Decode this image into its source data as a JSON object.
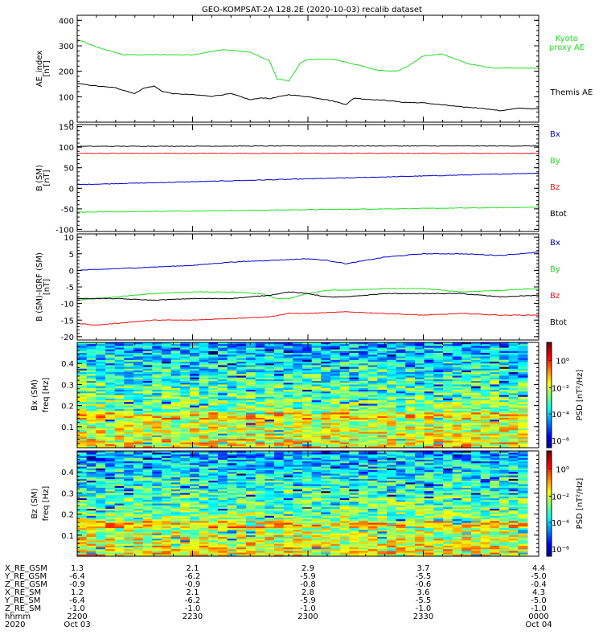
{
  "title": "GEO-KOMPSAT-2A 128.2E (2020-10-03) recalib dataset",
  "colors": {
    "green": "#22dd22",
    "black": "#000000",
    "blue": "#0000cc",
    "red": "#ee1111"
  },
  "chart_data": [
    {
      "type": "line",
      "panel": "ae_index",
      "ylabel": [
        "AE_index",
        "[nT]"
      ],
      "ylim": [
        0,
        420
      ],
      "yticks": [
        0,
        100,
        200,
        300,
        400
      ],
      "x_range": [
        0,
        120
      ],
      "series": [
        {
          "name": "Kyoto proxy AE",
          "label_lines": [
            "Kyoto",
            "proxy AE"
          ],
          "color": "green",
          "x": [
            0,
            5,
            12,
            20,
            30,
            38,
            45,
            50,
            52,
            55,
            58,
            60,
            62,
            67,
            72,
            78,
            83,
            86,
            90,
            95,
            98,
            102,
            108,
            115,
            120
          ],
          "y": [
            325,
            295,
            265,
            265,
            265,
            285,
            275,
            240,
            170,
            162,
            232,
            245,
            247,
            246,
            228,
            205,
            200,
            220,
            260,
            268,
            250,
            228,
            213,
            212,
            212
          ]
        },
        {
          "name": "Themis AE",
          "label_lines": [
            "Themis AE"
          ],
          "color": "black",
          "x": [
            0,
            5,
            10,
            15,
            17,
            20,
            22,
            25,
            30,
            35,
            40,
            45,
            48,
            50,
            55,
            60,
            65,
            70,
            72,
            75,
            80,
            85,
            90,
            95,
            100,
            105,
            110,
            115,
            120
          ],
          "y": [
            152,
            142,
            135,
            112,
            132,
            142,
            122,
            112,
            108,
            102,
            112,
            88,
            96,
            92,
            108,
            100,
            88,
            70,
            95,
            90,
            86,
            78,
            76,
            68,
            60,
            55,
            45,
            55,
            52
          ]
        }
      ]
    },
    {
      "type": "line",
      "panel": "b_sm",
      "ylabel": [
        "B (SM)",
        "[nT]"
      ],
      "ylim": [
        -105,
        155
      ],
      "yticks": [
        -100,
        -50,
        0,
        50,
        100,
        150
      ],
      "x_range": [
        0,
        120
      ],
      "series": [
        {
          "name": "Bx",
          "color": "blue",
          "x": [
            0,
            120
          ],
          "y": [
            9,
            37
          ]
        },
        {
          "name": "By",
          "color": "green",
          "x": [
            0,
            120
          ],
          "y": [
            -58,
            -46
          ]
        },
        {
          "name": "Bz",
          "color": "red",
          "x": [
            0,
            120
          ],
          "y": [
            85,
            85
          ]
        },
        {
          "name": "Btot",
          "color": "black",
          "x": [
            0,
            60,
            120
          ],
          "y": [
            102,
            103,
            103
          ]
        }
      ]
    },
    {
      "type": "line",
      "panel": "b_minus_igrf",
      "ylabel": [
        "B (SM)-IGRF (SM)",
        "[nT]"
      ],
      "ylim": [
        -21,
        11
      ],
      "yticks": [
        -20,
        -15,
        -10,
        -5,
        0,
        5,
        10
      ],
      "x_range": [
        0,
        120
      ],
      "series": [
        {
          "name": "Bx",
          "color": "blue",
          "x": [
            0,
            10,
            20,
            30,
            40,
            50,
            60,
            65,
            70,
            75,
            80,
            90,
            100,
            110,
            120
          ],
          "y": [
            0,
            0.5,
            1,
            1.5,
            2.5,
            3,
            3.5,
            3,
            2,
            3,
            4,
            5,
            5,
            4.5,
            5.5
          ]
        },
        {
          "name": "By",
          "color": "green",
          "x": [
            0,
            10,
            20,
            30,
            40,
            48,
            52,
            55,
            60,
            65,
            70,
            80,
            90,
            100,
            110,
            120
          ],
          "y": [
            -9,
            -8,
            -7,
            -6.5,
            -6.5,
            -7,
            -8.5,
            -8.5,
            -7,
            -6,
            -6,
            -5.5,
            -5.5,
            -6.5,
            -6,
            -5.5
          ]
        },
        {
          "name": "Bz",
          "color": "red",
          "x": [
            0,
            5,
            10,
            20,
            30,
            40,
            50,
            55,
            60,
            70,
            80,
            90,
            100,
            110,
            120
          ],
          "y": [
            -16,
            -16.5,
            -16,
            -15,
            -15,
            -14.5,
            -14,
            -13,
            -13,
            -12.5,
            -13,
            -13.5,
            -13,
            -13.5,
            -13.5
          ]
        },
        {
          "name": "Btot",
          "color": "black",
          "x": [
            0,
            10,
            20,
            30,
            40,
            45,
            50,
            55,
            60,
            65,
            70,
            80,
            90,
            100,
            110,
            120
          ],
          "y": [
            -8.5,
            -8.5,
            -9,
            -8.5,
            -8.5,
            -8,
            -7.5,
            -6.5,
            -7,
            -8,
            -8,
            -7,
            -7,
            -7,
            -8,
            -7.5
          ]
        }
      ]
    },
    {
      "type": "heatmap",
      "panel": "bx_spectrogram",
      "ylabel": [
        "Bx (SM)",
        "freq [Hz]"
      ],
      "ylim": [
        0,
        0.5
      ],
      "yticks": [
        0.1,
        0.2,
        0.3,
        0.4
      ],
      "colorbar": {
        "label": "PSD [nT²/Hz]",
        "ticks": [
          "10⁰",
          "10⁻²",
          "10⁻⁴",
          "10⁻⁶"
        ]
      }
    },
    {
      "type": "heatmap",
      "panel": "bz_spectrogram",
      "ylabel": [
        "Bz (SM)",
        "freq [Hz]"
      ],
      "ylim": [
        0,
        0.5
      ],
      "yticks": [
        0.1,
        0.2,
        0.3,
        0.4
      ],
      "colorbar": {
        "label": "PSD [nT²/Hz]",
        "ticks": [
          "10⁰",
          "10⁻²",
          "10⁻⁴",
          "10⁻⁶"
        ]
      }
    }
  ],
  "x_axis_table": {
    "rows": [
      {
        "label": "X_RE_GSM",
        "values": [
          "1.3",
          "2.1",
          "2.9",
          "3.7",
          "4.4"
        ]
      },
      {
        "label": "Y_RE_GSM",
        "values": [
          "-6.4",
          "-6.2",
          "-5.9",
          "-5.5",
          "-5.0"
        ]
      },
      {
        "label": "Z_RE_GSM",
        "values": [
          "-0.9",
          "-0.9",
          "-0.8",
          "-0.6",
          "-0.4"
        ]
      },
      {
        "label": "X_RE_SM",
        "values": [
          "1.2",
          "2.1",
          "2.8",
          "3.6",
          "4.3"
        ]
      },
      {
        "label": "Y_RE_SM",
        "values": [
          "-6.4",
          "-6.2",
          "-5.9",
          "-5.5",
          "-5.0"
        ]
      },
      {
        "label": "Z_RE_SM",
        "values": [
          "-1.0",
          "-1.0",
          "-1.0",
          "-1.0",
          "-1.0"
        ]
      },
      {
        "label": "hhmm",
        "values": [
          "2200",
          "2230",
          "2300",
          "2330",
          "0000"
        ]
      },
      {
        "label": "2020",
        "values": [
          "Oct 03",
          "",
          "",
          "",
          "Oct 04"
        ]
      }
    ],
    "tick_minutes": [
      0,
      30,
      60,
      90,
      120
    ]
  }
}
